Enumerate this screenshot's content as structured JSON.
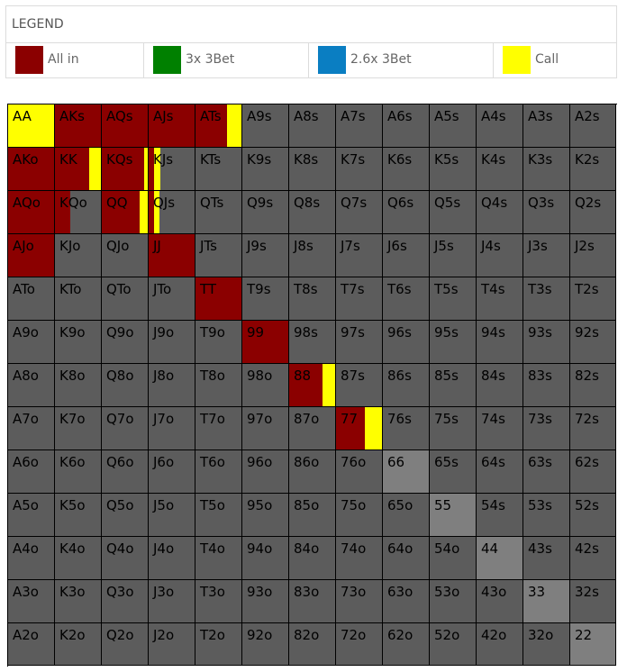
{
  "legend": {
    "title": "LEGEND",
    "items": [
      {
        "label": "All in",
        "color": "#8b0000"
      },
      {
        "label": "3x 3Bet",
        "color": "#008000"
      },
      {
        "label": "2.6x 3Bet",
        "color": "#0a7ec2"
      },
      {
        "label": "Call",
        "color": "#ffff00"
      }
    ]
  },
  "colors": {
    "fold": "#5c5c5c",
    "pair_fold": "#7f7f7f",
    "all_in": "#8b0000",
    "call": "#ffff00"
  },
  "grid": {
    "ranks": [
      "A",
      "K",
      "Q",
      "J",
      "T",
      "9",
      "8",
      "7",
      "6",
      "5",
      "4",
      "3",
      "2"
    ],
    "hands": [
      [
        "AA",
        "AKs",
        "AQs",
        "AJs",
        "ATs",
        "A9s",
        "A8s",
        "A7s",
        "A6s",
        "A5s",
        "A4s",
        "A3s",
        "A2s"
      ],
      [
        "AKo",
        "KK",
        "KQs",
        "KJs",
        "KTs",
        "K9s",
        "K8s",
        "K7s",
        "K6s",
        "K5s",
        "K4s",
        "K3s",
        "K2s"
      ],
      [
        "AQo",
        "KQo",
        "QQ",
        "QJs",
        "QTs",
        "Q9s",
        "Q8s",
        "Q7s",
        "Q6s",
        "Q5s",
        "Q4s",
        "Q3s",
        "Q2s"
      ],
      [
        "AJo",
        "KJo",
        "QJo",
        "JJ",
        "JTs",
        "J9s",
        "J8s",
        "J7s",
        "J6s",
        "J5s",
        "J4s",
        "J3s",
        "J2s"
      ],
      [
        "ATo",
        "KTo",
        "QTo",
        "JTo",
        "TT",
        "T9s",
        "T8s",
        "T7s",
        "T6s",
        "T5s",
        "T4s",
        "T3s",
        "T2s"
      ],
      [
        "A9o",
        "K9o",
        "Q9o",
        "J9o",
        "T9o",
        "99",
        "98s",
        "97s",
        "96s",
        "95s",
        "94s",
        "93s",
        "92s"
      ],
      [
        "A8o",
        "K8o",
        "Q8o",
        "J8o",
        "T8o",
        "98o",
        "88",
        "87s",
        "86s",
        "85s",
        "84s",
        "83s",
        "82s"
      ],
      [
        "A7o",
        "K7o",
        "Q7o",
        "J7o",
        "T7o",
        "97o",
        "87o",
        "77",
        "76s",
        "75s",
        "74s",
        "73s",
        "72s"
      ],
      [
        "A6o",
        "K6o",
        "Q6o",
        "J6o",
        "T6o",
        "96o",
        "86o",
        "76o",
        "66",
        "65s",
        "64s",
        "63s",
        "62s"
      ],
      [
        "A5o",
        "K5o",
        "Q5o",
        "J5o",
        "T5o",
        "95o",
        "85o",
        "75o",
        "65o",
        "55",
        "54s",
        "53s",
        "52s"
      ],
      [
        "A4o",
        "K4o",
        "Q4o",
        "J4o",
        "T4o",
        "94o",
        "84o",
        "74o",
        "64o",
        "54o",
        "44",
        "43s",
        "42s"
      ],
      [
        "A3o",
        "K3o",
        "Q3o",
        "J3o",
        "T3o",
        "93o",
        "83o",
        "73o",
        "63o",
        "53o",
        "43o",
        "33",
        "32s"
      ],
      [
        "A2o",
        "K2o",
        "Q2o",
        "J2o",
        "T2o",
        "92o",
        "82o",
        "72o",
        "62o",
        "52o",
        "42o",
        "32o",
        "22"
      ]
    ],
    "actions": {
      "AA": {
        "call": 1.0
      },
      "AKs": {
        "all_in": 1.0
      },
      "AQs": {
        "all_in": 1.0
      },
      "AJs": {
        "all_in": 1.0
      },
      "ATs": {
        "all_in": 0.69,
        "call": 0.31
      },
      "AKo": {
        "all_in": 1.0
      },
      "KK": {
        "all_in": 0.75,
        "call": 0.25
      },
      "KQs": {
        "all_in": 0.92,
        "call": 0.08
      },
      "KJs": {
        "all_in": 0.12,
        "call": 0.13
      },
      "AQo": {
        "all_in": 1.0
      },
      "KQo": {
        "all_in": 0.33
      },
      "QQ": {
        "all_in": 0.83,
        "call": 0.17
      },
      "QJs": {
        "all_in": 0.12,
        "call": 0.12
      },
      "AJo": {
        "all_in": 1.0
      },
      "JJ": {
        "all_in": 1.0
      },
      "TT": {
        "all_in": 1.0
      },
      "99": {
        "all_in": 1.0
      },
      "88": {
        "all_in": 0.73,
        "call": 0.27
      },
      "77": {
        "all_in": 0.62,
        "call": 0.38
      }
    }
  }
}
